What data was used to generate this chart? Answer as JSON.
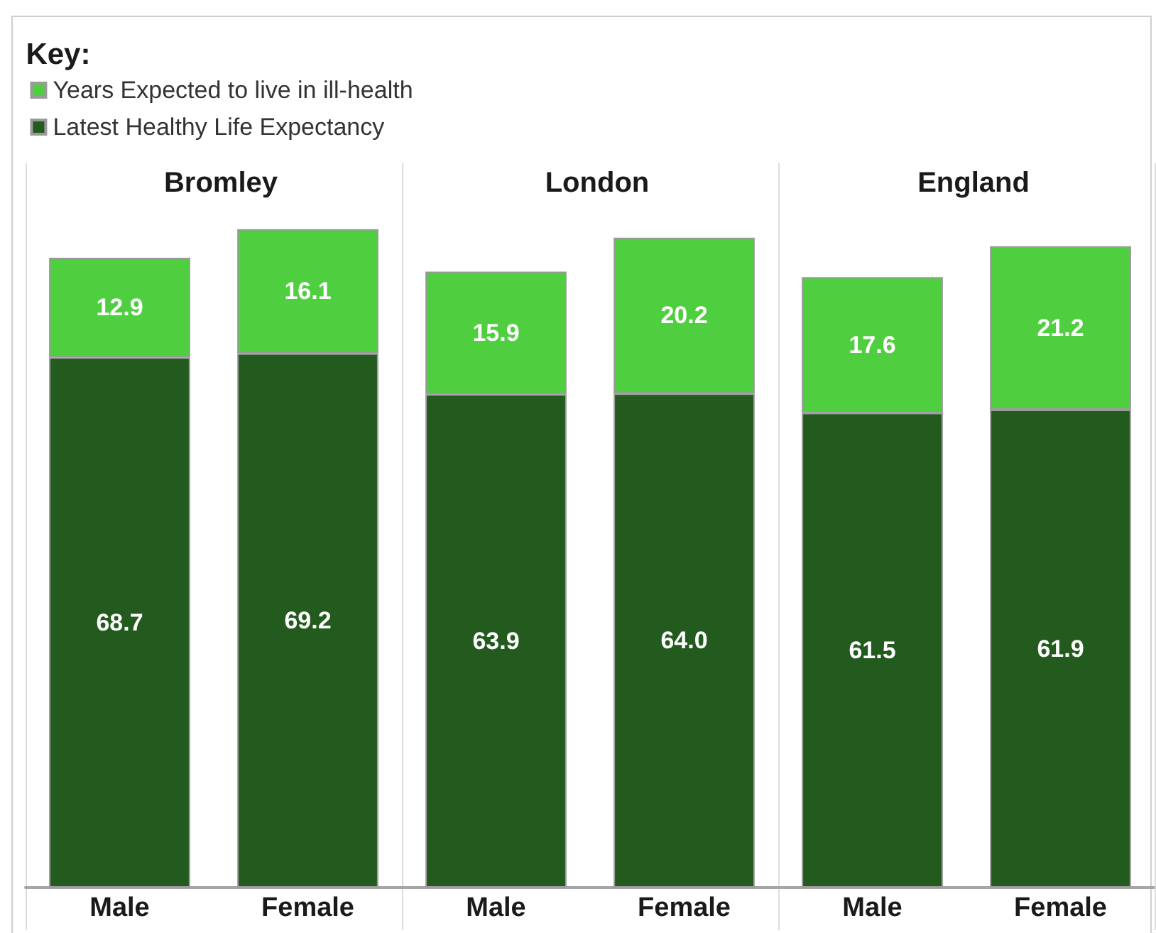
{
  "chart_data": [
    {
      "type": "bar",
      "title": "Bromley",
      "legend_title": "Key:",
      "legend": "top",
      "stacked": true,
      "categories": [
        "Male",
        "Female"
      ],
      "series": [
        {
          "name": "Latest Healthy Life Expectancy",
          "color": "#235a1e",
          "values": [
            68.7,
            69.2
          ],
          "value_labels": [
            "68.7",
            "69.2"
          ]
        },
        {
          "name": "Years Expected to live in ill-health",
          "color": "#4fcf3f",
          "values": [
            12.9,
            16.1
          ],
          "value_labels": [
            "12.9",
            "16.1"
          ]
        }
      ]
    },
    {
      "type": "bar",
      "title": "London",
      "stacked": true,
      "categories": [
        "Male",
        "Female"
      ],
      "series": [
        {
          "color": "#235a1e",
          "values": [
            63.9,
            64.0
          ],
          "value_labels": [
            "63.9",
            "64.0"
          ]
        },
        {
          "color": "#4fcf3f",
          "values": [
            15.9,
            20.2
          ],
          "value_labels": [
            "15.9",
            "20.2"
          ]
        }
      ]
    },
    {
      "type": "bar",
      "title": "England",
      "stacked": true,
      "categories": [
        "Male",
        "Female"
      ],
      "series": [
        {
          "color": "#235a1e",
          "values": [
            61.5,
            61.9
          ],
          "value_labels": [
            "61.5",
            "61.9"
          ]
        },
        {
          "color": "#4fcf3f",
          "values": [
            17.6,
            21.2
          ],
          "value_labels": [
            "17.6",
            "21.2"
          ]
        }
      ]
    }
  ]
}
